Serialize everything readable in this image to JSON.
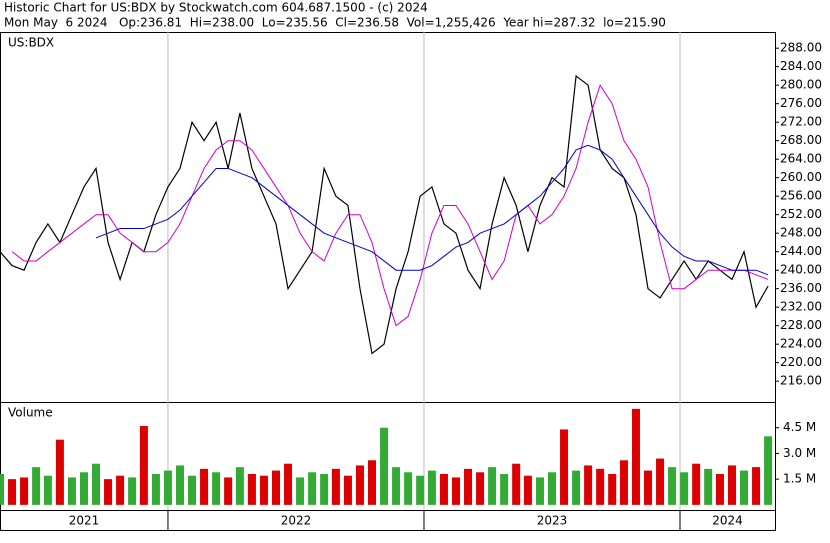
{
  "chart_data": {
    "type": "stock",
    "title": "Historic Chart for US:BDX by Stockwatch.com 604.687.1500 - (c) 2024",
    "subtitle": "Mon May  6 2024   Op:236.81  Hi=238.00  Lo=235.56  Cl=236.58  Vol=1,255,426  Year hi=287.32  lo=215.90",
    "symbol_label": "US:BDX",
    "x": [
      2021.344,
      2021.391,
      2021.438,
      2021.485,
      2021.531,
      2021.578,
      2021.625,
      2021.672,
      2021.719,
      2021.766,
      2021.813,
      2021.86,
      2021.906,
      2021.953,
      2022.0,
      2022.047,
      2022.094,
      2022.141,
      2022.188,
      2022.235,
      2022.281,
      2022.328,
      2022.375,
      2022.422,
      2022.469,
      2022.516,
      2022.563,
      2022.61,
      2022.656,
      2022.703,
      2022.75,
      2022.797,
      2022.844,
      2022.891,
      2022.938,
      2022.985,
      2023.031,
      2023.078,
      2023.125,
      2023.172,
      2023.219,
      2023.266,
      2023.313,
      2023.36,
      2023.406,
      2023.453,
      2023.5,
      2023.547,
      2023.594,
      2023.641,
      2023.688,
      2023.735,
      2023.781,
      2023.828,
      2023.875,
      2023.922,
      2023.969,
      2024.016,
      2024.063,
      2024.11,
      2024.156,
      2024.203,
      2024.25,
      2024.297,
      2024.344
    ],
    "xlim": [
      2021.344,
      2024.371
    ],
    "xticks": [
      2022,
      2023,
      2024
    ],
    "x_labels": [
      2021,
      2022,
      2023,
      2024
    ],
    "series": [
      {
        "color": "#000000",
        "values": [
          244,
          241,
          240,
          246,
          250,
          246,
          252,
          258,
          262,
          246,
          238,
          246,
          244,
          252,
          258,
          262,
          272,
          268,
          272,
          262,
          274,
          262,
          256,
          250,
          236,
          240,
          244,
          262,
          256,
          254,
          236,
          222,
          224,
          236,
          244,
          256,
          258,
          250,
          248,
          240,
          236,
          250,
          260,
          254,
          244,
          254,
          260,
          258,
          282,
          280,
          266,
          262,
          260,
          252,
          236,
          234,
          238,
          242,
          238,
          242,
          240,
          238,
          244,
          232,
          236.58
        ]
      },
      {
        "color": "#cc00cc",
        "values": [
          null,
          244,
          242,
          242,
          244,
          246,
          248,
          250,
          252,
          252,
          248,
          246,
          244,
          244,
          246,
          250,
          256,
          262,
          266,
          268,
          268,
          266,
          262,
          258,
          254,
          248,
          244,
          242,
          248,
          252,
          252,
          246,
          236,
          228,
          230,
          238,
          248,
          254,
          254,
          250,
          244,
          238,
          242,
          252,
          254,
          250,
          252,
          256,
          262,
          272,
          280,
          276,
          268,
          264,
          258,
          246,
          236,
          236,
          238,
          240,
          240,
          240,
          240,
          239,
          238
        ]
      },
      {
        "color": "#0000cc",
        "values": [
          null,
          null,
          null,
          null,
          null,
          null,
          null,
          null,
          247,
          248,
          249,
          249,
          249,
          250,
          251,
          253,
          256,
          259,
          262,
          262,
          261,
          260,
          258,
          256,
          254,
          252,
          250,
          248,
          247,
          246,
          245,
          244,
          242,
          240,
          240,
          240,
          241,
          243,
          245,
          246,
          248,
          249,
          250,
          252,
          254,
          256,
          259,
          262,
          266,
          267,
          266,
          264,
          260,
          256,
          252,
          248,
          245,
          243,
          242,
          242,
          241,
          240,
          240,
          240,
          239
        ]
      }
    ],
    "ylim": [
      211.5,
      291.5
    ],
    "yticks": [
      {
        "value": 216,
        "label": "216.00"
      },
      {
        "value": 220,
        "label": "220.00"
      },
      {
        "value": 224,
        "label": "224.00"
      },
      {
        "value": 228,
        "label": "228.00"
      },
      {
        "value": 232,
        "label": "232.00"
      },
      {
        "value": 236,
        "label": "236.00"
      },
      {
        "value": 240,
        "label": "240.00"
      },
      {
        "value": 244,
        "label": "244.00"
      },
      {
        "value": 248,
        "label": "248.00"
      },
      {
        "value": 252,
        "label": "252.00"
      },
      {
        "value": 256,
        "label": "256.00"
      },
      {
        "value": 260,
        "label": "260.00"
      },
      {
        "value": 264,
        "label": "264.00"
      },
      {
        "value": 268,
        "label": "268.00"
      },
      {
        "value": 272,
        "label": "272.00"
      },
      {
        "value": 276,
        "label": "276.00"
      },
      {
        "value": 280,
        "label": "280.00"
      },
      {
        "value": 284,
        "label": "284.00"
      },
      {
        "value": 288,
        "label": "288.00"
      }
    ],
    "volume": {
      "label": "Volume",
      "up_color": "#33aa33",
      "down_color": "#dd0000",
      "values": [
        1.8,
        1.5,
        1.6,
        2.2,
        1.7,
        3.8,
        1.6,
        1.9,
        2.4,
        1.5,
        1.7,
        1.6,
        4.6,
        1.8,
        2.0,
        2.3,
        1.7,
        2.1,
        1.9,
        1.6,
        2.2,
        1.8,
        1.7,
        2.0,
        2.4,
        1.6,
        1.9,
        1.8,
        2.1,
        1.7,
        2.3,
        2.6,
        4.5,
        2.2,
        1.9,
        1.7,
        2.0,
        1.8,
        1.6,
        2.1,
        1.9,
        2.2,
        1.8,
        2.4,
        1.7,
        1.6,
        1.9,
        4.4,
        2.0,
        2.3,
        2.1,
        1.8,
        2.6,
        5.6,
        2.0,
        2.7,
        2.2,
        1.9,
        2.4,
        2.1,
        1.8,
        2.3,
        2.0,
        2.2,
        4.0
      ],
      "ylim": [
        -0.3,
        6.0
      ],
      "yticks": [
        {
          "value": 1.5,
          "label": "1.5 M"
        },
        {
          "value": 3.0,
          "label": "3.0 M"
        },
        {
          "value": 4.5,
          "label": "4.5 M"
        }
      ]
    }
  }
}
